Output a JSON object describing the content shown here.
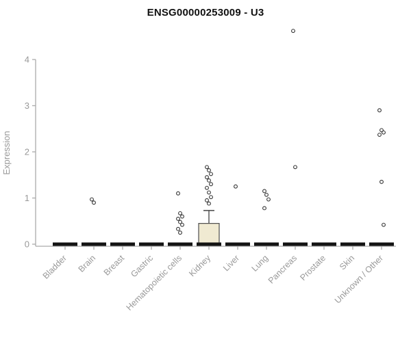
{
  "title": "ENSG00000253009 - U3",
  "chart_data": {
    "type": "boxplot",
    "title": "ENSG00000253009 - U3",
    "ylabel": "Expression",
    "ylim": [
      0,
      4
    ],
    "yticks": [
      0,
      1,
      2,
      3,
      4
    ],
    "grid": false,
    "legend": "none",
    "categories": [
      "Bladder",
      "Brain",
      "Breast",
      "Gastric",
      "Hematopoietic cells",
      "Kidney",
      "Liver",
      "Lung",
      "Pancreas",
      "Prostate",
      "Skin",
      "Unknown / Other"
    ],
    "series": [
      {
        "category": "Bladder",
        "q1": 0,
        "median": 0,
        "q3": 0,
        "whisker_low": 0,
        "whisker_high": 0,
        "outliers": []
      },
      {
        "category": "Brain",
        "q1": 0,
        "median": 0,
        "q3": 0,
        "whisker_low": 0,
        "whisker_high": 0,
        "outliers": [
          0.97,
          0.9
        ]
      },
      {
        "category": "Breast",
        "q1": 0,
        "median": 0,
        "q3": 0,
        "whisker_low": 0,
        "whisker_high": 0,
        "outliers": []
      },
      {
        "category": "Gastric",
        "q1": 0,
        "median": 0,
        "q3": 0,
        "whisker_low": 0,
        "whisker_high": 0,
        "outliers": []
      },
      {
        "category": "Hematopoietic cells",
        "q1": 0,
        "median": 0,
        "q3": 0,
        "whisker_low": 0,
        "whisker_high": 0,
        "outliers": [
          1.1,
          0.67,
          0.6,
          0.55,
          0.48,
          0.42,
          0.33,
          0.25
        ]
      },
      {
        "category": "Kidney",
        "q1": 0,
        "median": 0,
        "q3": 0.45,
        "whisker_low": 0,
        "whisker_high": 0.73,
        "outliers": [
          1.67,
          1.6,
          1.52,
          1.45,
          1.38,
          1.3,
          1.22,
          1.12,
          1.02,
          0.95,
          0.88
        ]
      },
      {
        "category": "Liver",
        "q1": 0,
        "median": 0,
        "q3": 0,
        "whisker_low": 0,
        "whisker_high": 0,
        "outliers": [
          1.25
        ]
      },
      {
        "category": "Lung",
        "q1": 0,
        "median": 0,
        "q3": 0,
        "whisker_low": 0,
        "whisker_high": 0,
        "outliers": [
          1.15,
          1.07,
          0.97,
          0.78
        ]
      },
      {
        "category": "Pancreas",
        "q1": 0,
        "median": 0,
        "q3": 0,
        "whisker_low": 0,
        "whisker_high": 0,
        "outliers": [
          4.62,
          1.67
        ]
      },
      {
        "category": "Prostate",
        "q1": 0,
        "median": 0,
        "q3": 0,
        "whisker_low": 0,
        "whisker_high": 0,
        "outliers": []
      },
      {
        "category": "Skin",
        "q1": 0,
        "median": 0,
        "q3": 0,
        "whisker_low": 0,
        "whisker_high": 0,
        "outliers": []
      },
      {
        "category": "Unknown / Other",
        "q1": 0,
        "median": 0,
        "q3": 0,
        "whisker_low": 0,
        "whisker_high": 0,
        "outliers": [
          2.9,
          2.47,
          2.42,
          2.37,
          1.35,
          0.42
        ]
      }
    ],
    "colors": {
      "box_fill": "#f0ead2",
      "box_stroke": "#4d4d4d",
      "median": "#141414",
      "whisker": "#4d4d4d",
      "outlier_stroke": "#333333",
      "axis": "#aaaaaa",
      "tick_text": "#999999",
      "title_text": "#111111"
    }
  }
}
